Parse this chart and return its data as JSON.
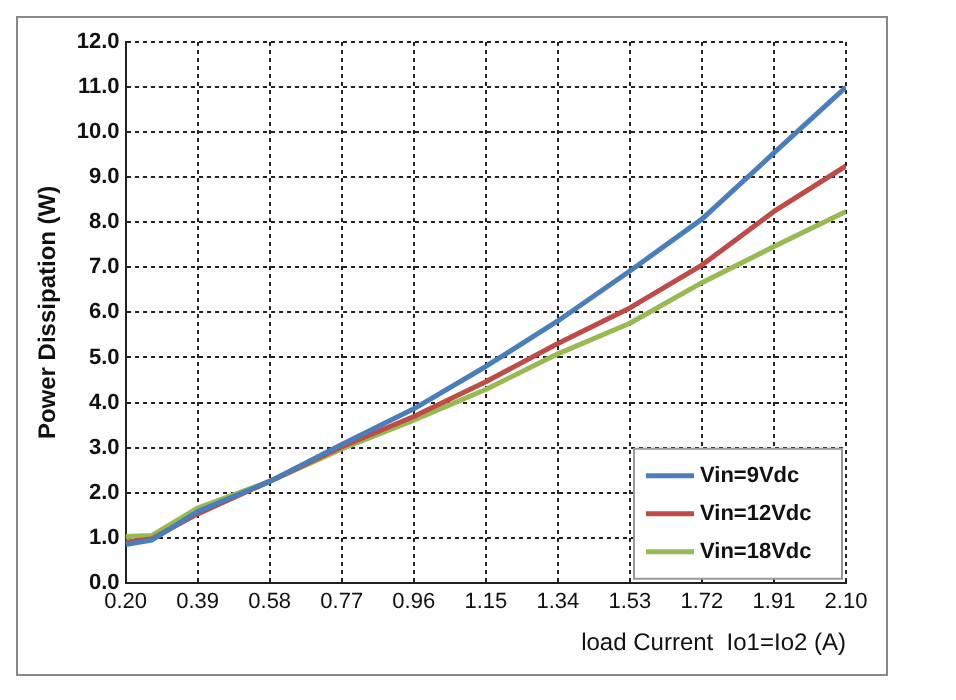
{
  "chart_data": {
    "type": "line",
    "xlabel": "load Current  Io1=Io2 (A)",
    "ylabel": "Power Dissipation (W)",
    "x": [
      0.2,
      0.27,
      0.39,
      0.58,
      0.77,
      0.96,
      1.15,
      1.34,
      1.53,
      1.72,
      1.91,
      2.1
    ],
    "series": [
      {
        "name": "Vin=9Vdc",
        "color": "#4a7ebb",
        "values": [
          0.85,
          0.95,
          1.58,
          2.25,
          3.07,
          3.86,
          4.8,
          5.81,
          6.92,
          8.07,
          9.54,
          11.0
        ]
      },
      {
        "name": "Vin=12Vdc",
        "color": "#be4b48",
        "values": [
          0.9,
          0.98,
          1.53,
          2.25,
          3.02,
          3.69,
          4.46,
          5.31,
          6.1,
          7.05,
          8.24,
          9.25
        ]
      },
      {
        "name": "Vin=18Vdc",
        "color": "#98b954",
        "values": [
          1.03,
          1.05,
          1.66,
          2.25,
          2.97,
          3.61,
          4.29,
          5.08,
          5.76,
          6.66,
          7.46,
          8.24
        ]
      }
    ],
    "xlim": [
      0.2,
      2.1
    ],
    "xticks": [
      {
        "value": 0.2,
        "label": "0.20"
      },
      {
        "value": 0.39,
        "label": "0.39"
      },
      {
        "value": 0.58,
        "label": "0.58"
      },
      {
        "value": 0.77,
        "label": "0.77"
      },
      {
        "value": 0.96,
        "label": "0.96"
      },
      {
        "value": 1.15,
        "label": "1.15"
      },
      {
        "value": 1.34,
        "label": "1.34"
      },
      {
        "value": 1.53,
        "label": "1.53"
      },
      {
        "value": 1.72,
        "label": "1.72"
      },
      {
        "value": 1.91,
        "label": "1.91"
      },
      {
        "value": 2.1,
        "label": "2.10"
      }
    ],
    "ylim": [
      0,
      12
    ],
    "yticks": [
      {
        "value": 0,
        "label": "0.0"
      },
      {
        "value": 1,
        "label": "1.0"
      },
      {
        "value": 2,
        "label": "2.0"
      },
      {
        "value": 3,
        "label": "3.0"
      },
      {
        "value": 4,
        "label": "4.0"
      },
      {
        "value": 5,
        "label": "5.0"
      },
      {
        "value": 6,
        "label": "6.0"
      },
      {
        "value": 7,
        "label": "7.0"
      },
      {
        "value": 8,
        "label": "8.0"
      },
      {
        "value": 9,
        "label": "9.0"
      },
      {
        "value": 10,
        "label": "10.0"
      },
      {
        "value": 11,
        "label": "11.0"
      },
      {
        "value": 12,
        "label": "12.0"
      }
    ],
    "grid": true,
    "legend": "bottom right",
    "marker": "none",
    "line_style": "solid"
  }
}
